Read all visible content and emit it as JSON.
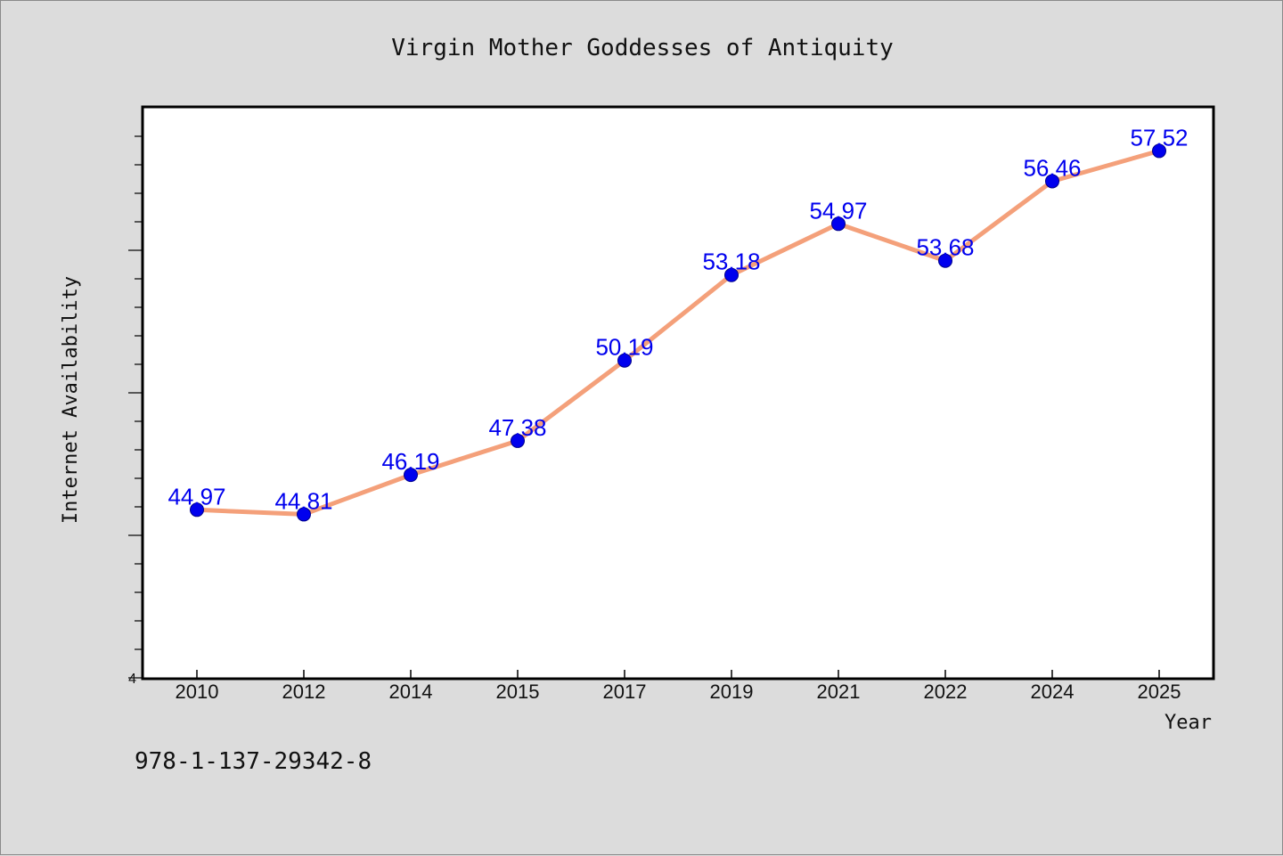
{
  "colors": {
    "background": "#dcdcdc",
    "plot_background": "#ffffff",
    "line": "#f4a07a",
    "marker": "#0000ee",
    "data_label": "#0000ee"
  },
  "footer": {
    "isbn": "978-1-137-29342-8"
  },
  "chart_data": {
    "type": "line",
    "title": "Virgin Mother Goddesses of Antiquity",
    "xlabel": "Year",
    "ylabel": "Internet Availability",
    "categories": [
      "2010",
      "2012",
      "2014",
      "2015",
      "2017",
      "2019",
      "2021",
      "2022",
      "2024",
      "2025"
    ],
    "series": [
      {
        "values": [
          44.97,
          44.81,
          46.19,
          47.38,
          50.19,
          53.18,
          54.97,
          53.68,
          56.46,
          57.52
        ]
      }
    ],
    "y_tick_labels": [
      "4"
    ],
    "ylim": [
      39.06,
      59.06
    ],
    "grid": false,
    "legend": "none"
  }
}
